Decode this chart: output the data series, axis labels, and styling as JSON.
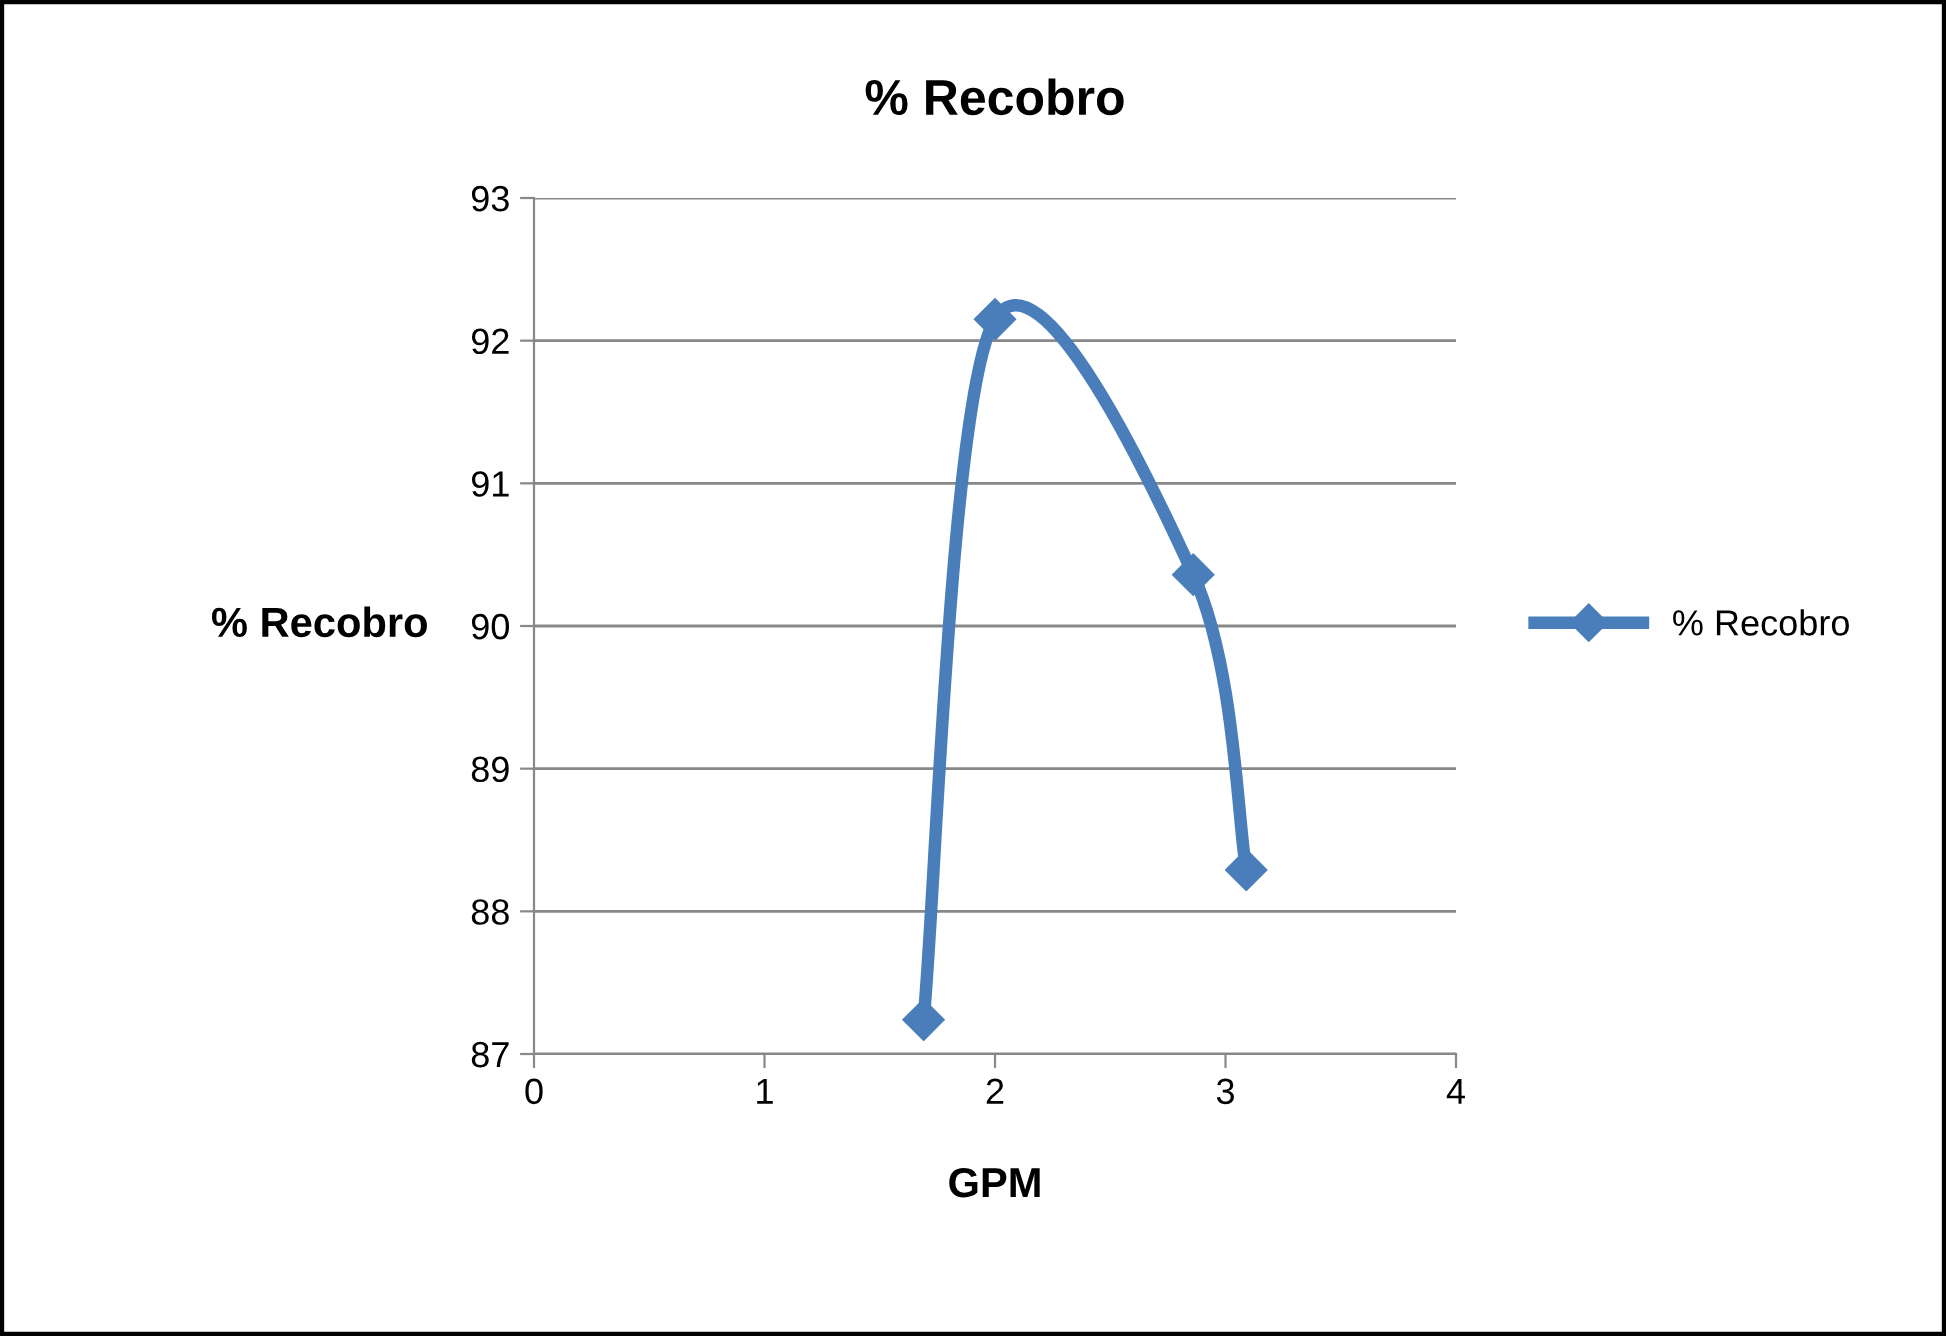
{
  "chart_data": {
    "type": "line",
    "title": "% Recobro",
    "xlabel": "GPM",
    "ylabel": "% Recobro",
    "series": [
      {
        "name": "% Recobro",
        "color": "#4a7ebb",
        "x": [
          1.69,
          2.0,
          2.86,
          3.09
        ],
        "values": [
          87.24,
          92.15,
          90.36,
          88.29
        ]
      }
    ],
    "xlim": [
      0,
      4
    ],
    "xticks": [
      0,
      1,
      2,
      3,
      4
    ],
    "ylim": [
      87,
      93
    ],
    "yticks": [
      87,
      88,
      89,
      90,
      91,
      92,
      93
    ],
    "grid": "y",
    "legend": "right",
    "marker": "diamond",
    "line_style": "solid"
  }
}
